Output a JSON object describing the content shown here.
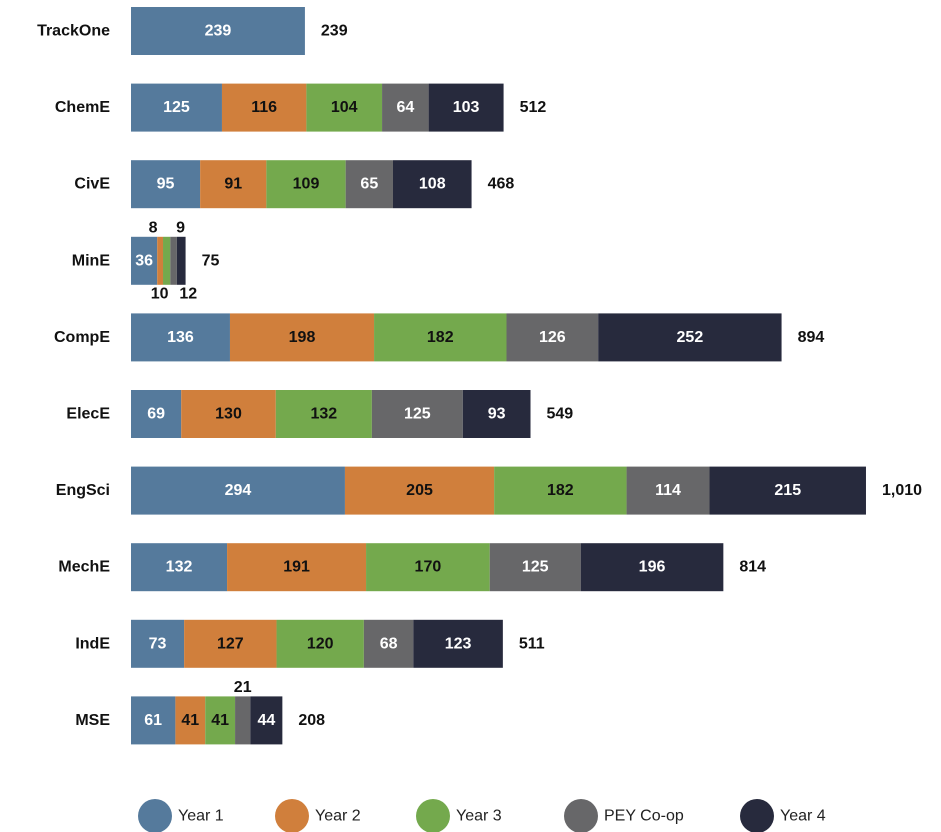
{
  "chart_data": {
    "type": "bar",
    "orientation": "horizontal",
    "stacked": true,
    "title": "",
    "xlabel": "",
    "ylabel": "",
    "categories": [
      "TrackOne",
      "ChemE",
      "CivE",
      "MinE",
      "CompE",
      "ElecE",
      "EngSci",
      "MechE",
      "IndE",
      "MSE"
    ],
    "series": [
      {
        "name": "Year 1",
        "color": "#557a9c",
        "values": [
          239,
          125,
          95,
          36,
          136,
          69,
          294,
          132,
          73,
          61
        ],
        "label_color": "#ffffff"
      },
      {
        "name": "Year 2",
        "color": "#d07f3c",
        "values": [
          0,
          116,
          91,
          8,
          198,
          130,
          205,
          191,
          127,
          41
        ],
        "label_color": "#111111"
      },
      {
        "name": "Year 3",
        "color": "#74a94d",
        "values": [
          0,
          104,
          109,
          10,
          182,
          132,
          182,
          170,
          120,
          41
        ],
        "label_color": "#111111"
      },
      {
        "name": "PEY Co-op",
        "color": "#676769",
        "values": [
          0,
          64,
          65,
          9,
          126,
          125,
          114,
          125,
          68,
          21
        ],
        "label_color": "#ffffff"
      },
      {
        "name": "Year 4",
        "color": "#272a3d",
        "values": [
          0,
          103,
          108,
          12,
          252,
          93,
          215,
          196,
          123,
          44
        ],
        "label_color": "#ffffff"
      }
    ],
    "totals": [
      "239",
      "512",
      "468",
      "75",
      "894",
      "549",
      "1,010",
      "814",
      "511",
      "208"
    ],
    "xlim": [
      0,
      1010
    ],
    "grid": false,
    "legend_position": "bottom"
  }
}
